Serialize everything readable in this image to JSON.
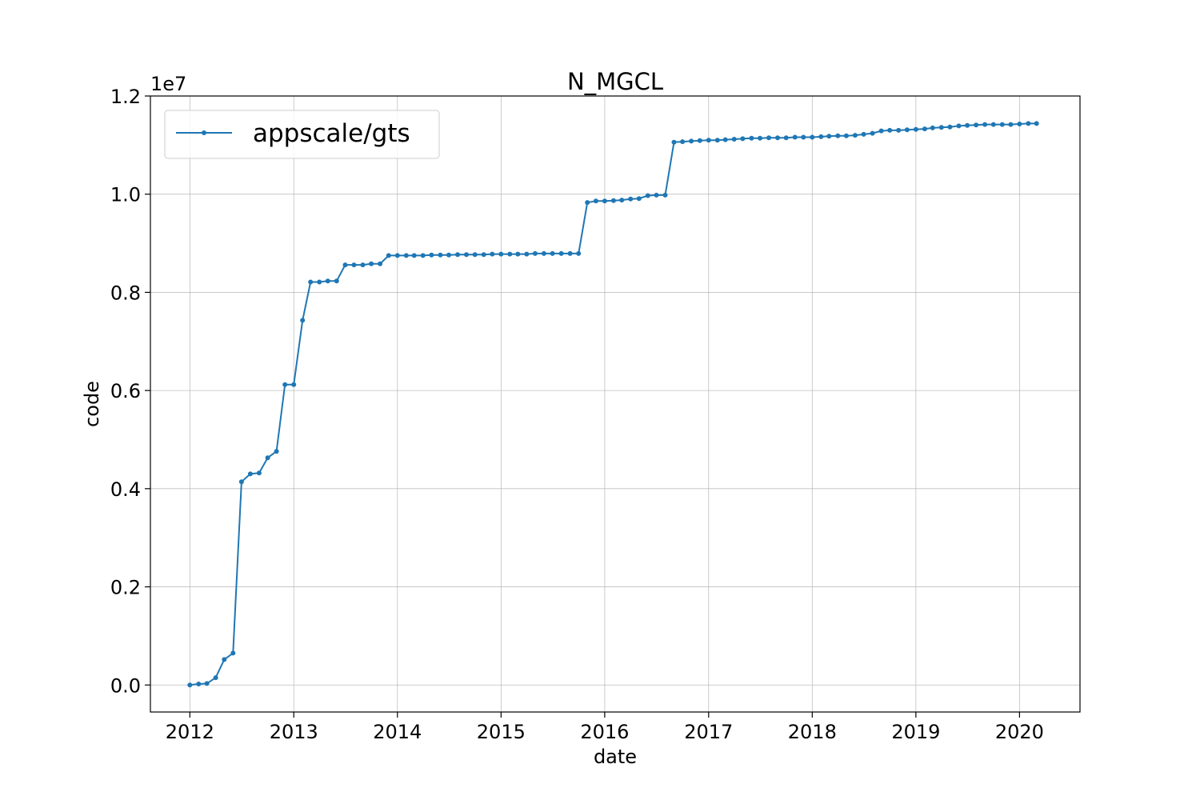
{
  "chart_data": {
    "type": "line",
    "title": "N_MGCL",
    "xlabel": "date",
    "ylabel": "code",
    "y_offset_label": "1e7",
    "x_ticks": [
      "2012",
      "2013",
      "2014",
      "2015",
      "2016",
      "2017",
      "2018",
      "2019",
      "2020"
    ],
    "y_ticks": [
      "0.0",
      "0.2",
      "0.4",
      "0.6",
      "0.8",
      "1.0",
      "1.2"
    ],
    "y_tick_values": [
      0,
      2000000,
      4000000,
      6000000,
      8000000,
      10000000,
      12000000
    ],
    "xlim": [
      "2011-08-15",
      "2020-08-01"
    ],
    "ylim": [
      -550000,
      12000000
    ],
    "grid": true,
    "legend_position": "top-left",
    "series": [
      {
        "name": "appscale/gts",
        "color": "#1f77b4",
        "marker": "dot",
        "x": [
          "2012-01-01",
          "2012-02-01",
          "2012-03-01",
          "2012-04-01",
          "2012-05-01",
          "2012-06-01",
          "2012-07-01",
          "2012-08-01",
          "2012-09-01",
          "2012-10-01",
          "2012-11-01",
          "2012-12-01",
          "2013-01-01",
          "2013-02-01",
          "2013-03-01",
          "2013-04-01",
          "2013-05-01",
          "2013-06-01",
          "2013-07-01",
          "2013-08-01",
          "2013-09-01",
          "2013-10-01",
          "2013-11-01",
          "2013-12-01",
          "2014-01-01",
          "2014-02-01",
          "2014-03-01",
          "2014-04-01",
          "2014-05-01",
          "2014-06-01",
          "2014-07-01",
          "2014-08-01",
          "2014-09-01",
          "2014-10-01",
          "2014-11-01",
          "2014-12-01",
          "2015-01-01",
          "2015-02-01",
          "2015-03-01",
          "2015-04-01",
          "2015-05-01",
          "2015-06-01",
          "2015-07-01",
          "2015-08-01",
          "2015-09-01",
          "2015-10-01",
          "2015-11-01",
          "2015-12-01",
          "2016-01-01",
          "2016-02-01",
          "2016-03-01",
          "2016-04-01",
          "2016-05-01",
          "2016-06-01",
          "2016-07-01",
          "2016-08-01",
          "2016-09-01",
          "2016-10-01",
          "2016-11-01",
          "2016-12-01",
          "2017-01-01",
          "2017-02-01",
          "2017-03-01",
          "2017-04-01",
          "2017-05-01",
          "2017-06-01",
          "2017-07-01",
          "2017-08-01",
          "2017-09-01",
          "2017-10-01",
          "2017-11-01",
          "2017-12-01",
          "2018-01-01",
          "2018-02-01",
          "2018-03-01",
          "2018-04-01",
          "2018-05-01",
          "2018-06-01",
          "2018-07-01",
          "2018-08-01",
          "2018-09-01",
          "2018-10-01",
          "2018-11-01",
          "2018-12-01",
          "2019-01-01",
          "2019-02-01",
          "2019-03-01",
          "2019-04-01",
          "2019-05-01",
          "2019-06-01",
          "2019-07-01",
          "2019-08-01",
          "2019-09-01",
          "2019-10-01",
          "2019-11-01",
          "2019-12-01",
          "2020-01-01",
          "2020-02-01",
          "2020-03-01"
        ],
        "y": [
          0,
          20000,
          30000,
          150000,
          520000,
          650000,
          4140000,
          4300000,
          4320000,
          4630000,
          4760000,
          6120000,
          6120000,
          7430000,
          8210000,
          8210000,
          8230000,
          8230000,
          8560000,
          8560000,
          8560000,
          8580000,
          8580000,
          8750000,
          8750000,
          8750000,
          8750000,
          8750000,
          8760000,
          8760000,
          8760000,
          8770000,
          8770000,
          8770000,
          8770000,
          8780000,
          8780000,
          8780000,
          8780000,
          8780000,
          8790000,
          8790000,
          8790000,
          8790000,
          8790000,
          8790000,
          9830000,
          9860000,
          9860000,
          9870000,
          9880000,
          9900000,
          9910000,
          9970000,
          9980000,
          9980000,
          11060000,
          11070000,
          11080000,
          11090000,
          11100000,
          11100000,
          11110000,
          11120000,
          11130000,
          11140000,
          11140000,
          11150000,
          11150000,
          11150000,
          11160000,
          11160000,
          11160000,
          11170000,
          11180000,
          11190000,
          11190000,
          11200000,
          11220000,
          11240000,
          11290000,
          11300000,
          11300000,
          11310000,
          11320000,
          11330000,
          11350000,
          11360000,
          11370000,
          11390000,
          11400000,
          11410000,
          11420000,
          11420000,
          11420000,
          11420000,
          11430000,
          11440000,
          11440000
        ]
      }
    ]
  }
}
